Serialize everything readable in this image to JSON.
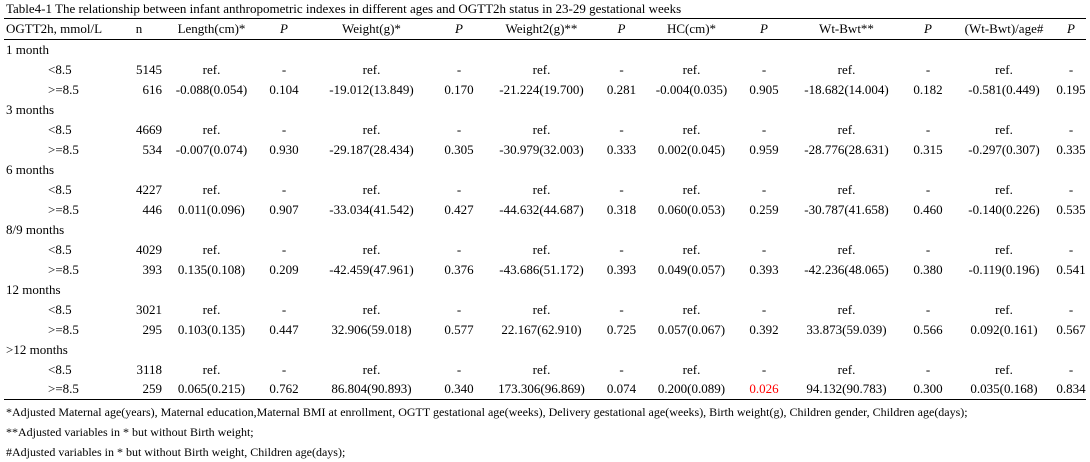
{
  "title": "Table4-1 The relationship between infant anthropometric indexes  in different ages and OGTT2h status in 23-29 gestational weeks",
  "headers": [
    "OGTT2h, mmol/L",
    "n",
    "Length(cm)*",
    "P",
    "Weight(g)*",
    "P",
    "Weight2(g)**",
    "P",
    "HC(cm)*",
    "P",
    "Wt-Bwt**",
    "P",
    "(Wt-Bwt)/age#",
    "P"
  ],
  "groups": [
    {
      "label": "1 month",
      "rows": [
        {
          "status": "<8.5",
          "n": "5145",
          "length": "ref.",
          "p1": "-",
          "weight": "ref.",
          "p2": "-",
          "weight2": "ref.",
          "p3": "-",
          "hc": "ref.",
          "p4": "-",
          "wtbwt": "ref.",
          "p5": "-",
          "wtbwt_age": "ref.",
          "p6": "-"
        },
        {
          "status": ">=8.5",
          "n": "616",
          "length": "-0.088(0.054)",
          "p1": "0.104",
          "weight": "-19.012(13.849)",
          "p2": "0.170",
          "weight2": "-21.224(19.700)",
          "p3": "0.281",
          "hc": "-0.004(0.035)",
          "p4": "0.905",
          "wtbwt": "-18.682(14.004)",
          "p5": "0.182",
          "wtbwt_age": "-0.581(0.449)",
          "p6": "0.195"
        }
      ]
    },
    {
      "label": "3 months",
      "rows": [
        {
          "status": "<8.5",
          "n": "4669",
          "length": "ref.",
          "p1": "-",
          "weight": "ref.",
          "p2": "-",
          "weight2": "ref.",
          "p3": "-",
          "hc": "ref.",
          "p4": "-",
          "wtbwt": "ref.",
          "p5": "-",
          "wtbwt_age": "ref.",
          "p6": "-"
        },
        {
          "status": ">=8.5",
          "n": "534",
          "length": "-0.007(0.074)",
          "p1": "0.930",
          "weight": "-29.187(28.434)",
          "p2": "0.305",
          "weight2": "-30.979(32.003)",
          "p3": "0.333",
          "hc": "0.002(0.045)",
          "p4": "0.959",
          "wtbwt": "-28.776(28.631)",
          "p5": "0.315",
          "wtbwt_age": "-0.297(0.307)",
          "p6": "0.335"
        }
      ]
    },
    {
      "label": "6 months",
      "rows": [
        {
          "status": "<8.5",
          "n": "4227",
          "length": "ref.",
          "p1": "-",
          "weight": "ref.",
          "p2": "-",
          "weight2": "ref.",
          "p3": "-",
          "hc": "ref.",
          "p4": "-",
          "wtbwt": "ref.",
          "p5": "-",
          "wtbwt_age": "ref.",
          "p6": "-"
        },
        {
          "status": ">=8.5",
          "n": "446",
          "length": "0.011(0.096)",
          "p1": "0.907",
          "weight": "-33.034(41.542)",
          "p2": "0.427",
          "weight2": "-44.632(44.687)",
          "p3": "0.318",
          "hc": "0.060(0.053)",
          "p4": "0.259",
          "wtbwt": "-30.787(41.658)",
          "p5": "0.460",
          "wtbwt_age": "-0.140(0.226)",
          "p6": "0.535"
        }
      ]
    },
    {
      "label": "8/9 months",
      "rows": [
        {
          "status": "<8.5",
          "n": "4029",
          "length": "ref.",
          "p1": "-",
          "weight": "ref.",
          "p2": "-",
          "weight2": "ref.",
          "p3": "-",
          "hc": "ref.",
          "p4": "-",
          "wtbwt": "ref.",
          "p5": "-",
          "wtbwt_age": "ref.",
          "p6": "-"
        },
        {
          "status": ">=8.5",
          "n": "393",
          "length": "0.135(0.108)",
          "p1": "0.209",
          "weight": "-42.459(47.961)",
          "p2": "0.376",
          "weight2": "-43.686(51.172)",
          "p3": "0.393",
          "hc": "0.049(0.057)",
          "p4": "0.393",
          "wtbwt": "-42.236(48.065)",
          "p5": "0.380",
          "wtbwt_age": "-0.119(0.196)",
          "p6": "0.541"
        }
      ]
    },
    {
      "label": "12 months",
      "rows": [
        {
          "status": "<8.5",
          "n": "3021",
          "length": "ref.",
          "p1": "-",
          "weight": "ref.",
          "p2": "-",
          "weight2": "ref.",
          "p3": "-",
          "hc": "ref.",
          "p4": "-",
          "wtbwt": "ref.",
          "p5": "-",
          "wtbwt_age": "ref.",
          "p6": "-"
        },
        {
          "status": ">=8.5",
          "n": "295",
          "length": "0.103(0.135)",
          "p1": "0.447",
          "weight": "32.906(59.018)",
          "p2": "0.577",
          "weight2": "22.167(62.910)",
          "p3": "0.725",
          "hc": "0.057(0.067)",
          "p4": "0.392",
          "wtbwt": "33.873(59.039)",
          "p5": "0.566",
          "wtbwt_age": "0.092(0.161)",
          "p6": "0.567"
        }
      ]
    },
    {
      "label": ">12 months",
      "rows": [
        {
          "status": "<8.5",
          "n": "3118",
          "length": "ref.",
          "p1": "-",
          "weight": "ref.",
          "p2": "-",
          "weight2": "ref.",
          "p3": "-",
          "hc": "ref.",
          "p4": "-",
          "wtbwt": "ref.",
          "p5": "-",
          "wtbwt_age": "ref.",
          "p6": "-"
        },
        {
          "status": ">=8.5",
          "n": "259",
          "length": "0.065(0.215)",
          "p1": "0.762",
          "weight": "86.804(90.893)",
          "p2": "0.340",
          "weight2": "173.306(96.869)",
          "p3": "0.074",
          "hc": "0.200(0.089)",
          "p4": "0.026",
          "wtbwt": "94.132(90.783)",
          "p5": "0.300",
          "wtbwt_age": "0.035(0.168)",
          "p6": "0.834"
        }
      ]
    }
  ],
  "significant_color": "#ff0000",
  "notes": [
    "*Adjusted Maternal age(years), Maternal education,Maternal BMI at enrollment, OGTT gestational age(weeks), Delivery gestational age(weeks), Birth weight(g), Children gender, Children age(days);",
    "**Adjusted variables in *  but without Birth weight;",
    "#Adjusted variables in *  but without Birth weight, Children age(days);"
  ]
}
